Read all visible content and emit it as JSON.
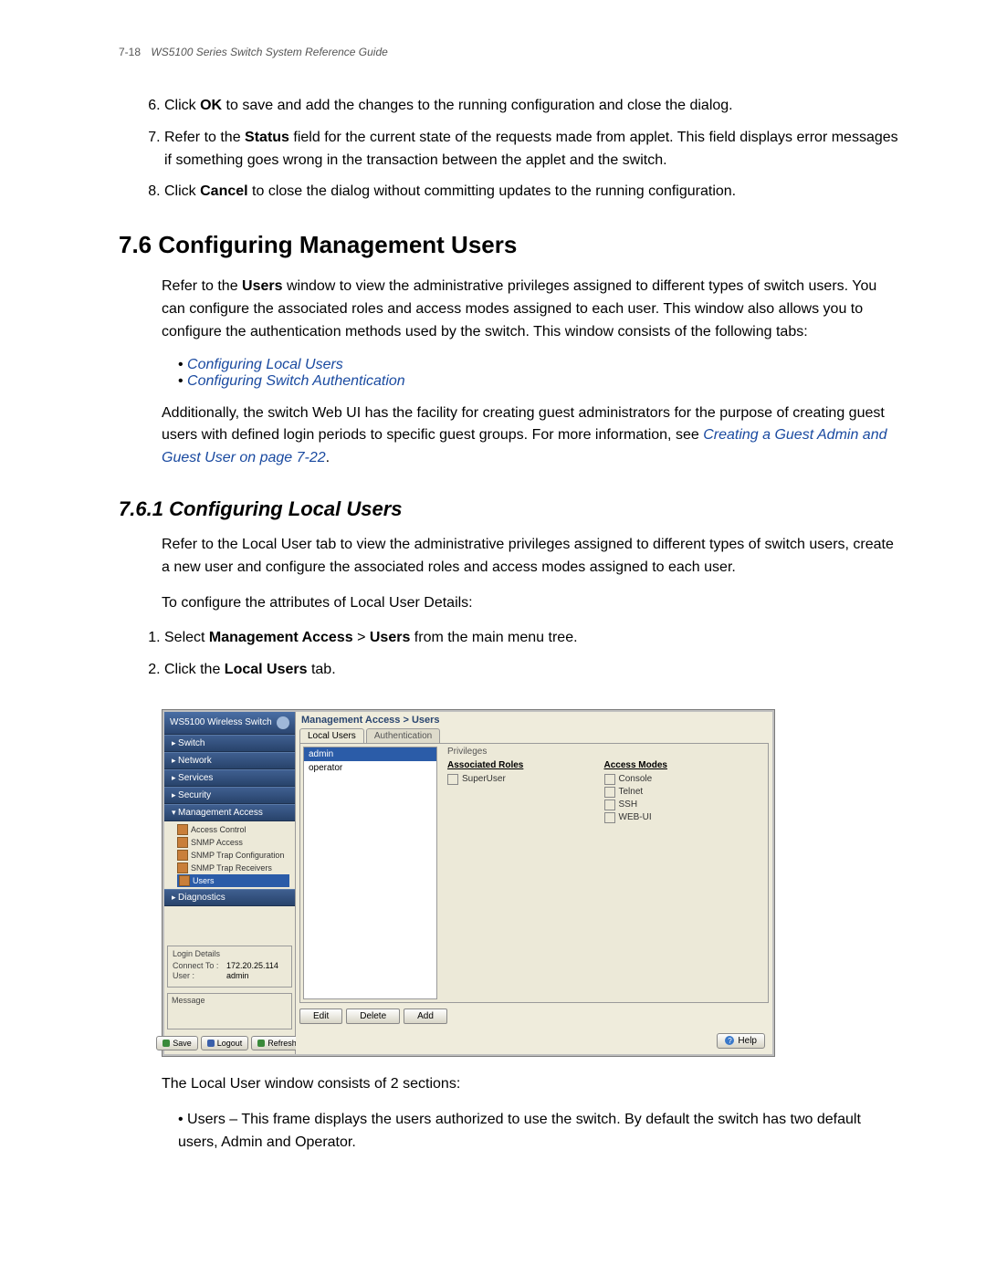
{
  "header": {
    "pageNum": "7-18",
    "title": "WS5100 Series Switch System Reference Guide"
  },
  "steps_a": [
    {
      "pre": "Click ",
      "bold": "OK",
      "post": " to save and add the changes to the running configuration and close the dialog."
    },
    {
      "pre": "Refer to the ",
      "bold": "Status",
      "post": " field for the current state of the requests made from applet. This field displays error messages if something goes wrong in the transaction between the applet and the switch."
    },
    {
      "pre": "Click ",
      "bold": "Cancel",
      "post": " to close the dialog without committing updates to the running configuration."
    }
  ],
  "section": {
    "num": "7.6",
    "title": "Configuring Management Users"
  },
  "para1": "Refer to the Users window to view the administrative privileges assigned to different types of switch users. You can configure the associated roles and access modes assigned to each user. This window also allows you to configure the authentication methods used by the switch. This window consists of the following tabs:",
  "links": [
    "Configuring Local Users",
    "Configuring Switch Authentication"
  ],
  "para2_pre": "Additionally, the switch Web UI has the facility for creating guest administrators for the purpose of creating guest users with defined login periods to specific guest groups. For more information, see ",
  "para2_link": "Creating a Guest Admin and Guest User on page 7-22",
  "para2_post": ".",
  "subsection": {
    "num": "7.6.1",
    "title": "Configuring Local Users"
  },
  "para3": "Refer to the Local User tab to view the administrative privileges assigned to different types of switch users, create a new user and configure the associated roles and access modes assigned to each user.",
  "para4": "To configure the attributes of Local User Details:",
  "steps_b": [
    {
      "pre": "Select ",
      "bold": "Management Access",
      "mid": " > ",
      "bold2": "Users",
      "post": " from the main menu tree."
    },
    {
      "pre": "Click the ",
      "bold": "Local Users",
      "post": " tab."
    }
  ],
  "shot": {
    "brand": "WS5100 Wireless Switch",
    "nav": [
      "Switch",
      "Network",
      "Services",
      "Security"
    ],
    "nav_open": "Management Access",
    "nav_sub": [
      "Access Control",
      "SNMP Access",
      "SNMP Trap Configuration",
      "SNMP Trap Receivers",
      "Users"
    ],
    "nav_sub_selected_idx": 4,
    "nav_last": "Diagnostics",
    "login_hdr": "Login Details",
    "login_rows": [
      {
        "lbl": "Connect To :",
        "val": "172.20.25.114"
      },
      {
        "lbl": "User :",
        "val": "admin"
      }
    ],
    "msg_hdr": "Message",
    "foot_btns": [
      "Save",
      "Logout",
      "Refresh"
    ],
    "foot_colors": [
      "#3a8a3a",
      "#3a5faa",
      "#3a8a3a"
    ],
    "breadcrumb": "Management Access > Users",
    "tabs": [
      "Local Users",
      "Authentication"
    ],
    "active_tab_idx": 0,
    "users": [
      "admin",
      "operator"
    ],
    "selected_user_idx": 0,
    "priv_hdr": "Privileges",
    "roles_hdr": "Associated Roles",
    "roles": [
      "SuperUser"
    ],
    "modes_hdr": "Access Modes",
    "modes": [
      "Console",
      "Telnet",
      "SSH",
      "WEB-UI"
    ],
    "btns": [
      "Edit",
      "Delete",
      "Add"
    ],
    "help": "Help"
  },
  "para5": "The Local User window consists of 2 sections:",
  "bullet1": "Users – This frame displays the users authorized to use the switch. By default the switch has two default users, Admin and Operator.",
  "colors": {
    "link": "#1a4aa0",
    "brand_grad_top": "#4a6fa5",
    "brand_grad_bot": "#2b4670",
    "selection": "#2b5ca8"
  }
}
